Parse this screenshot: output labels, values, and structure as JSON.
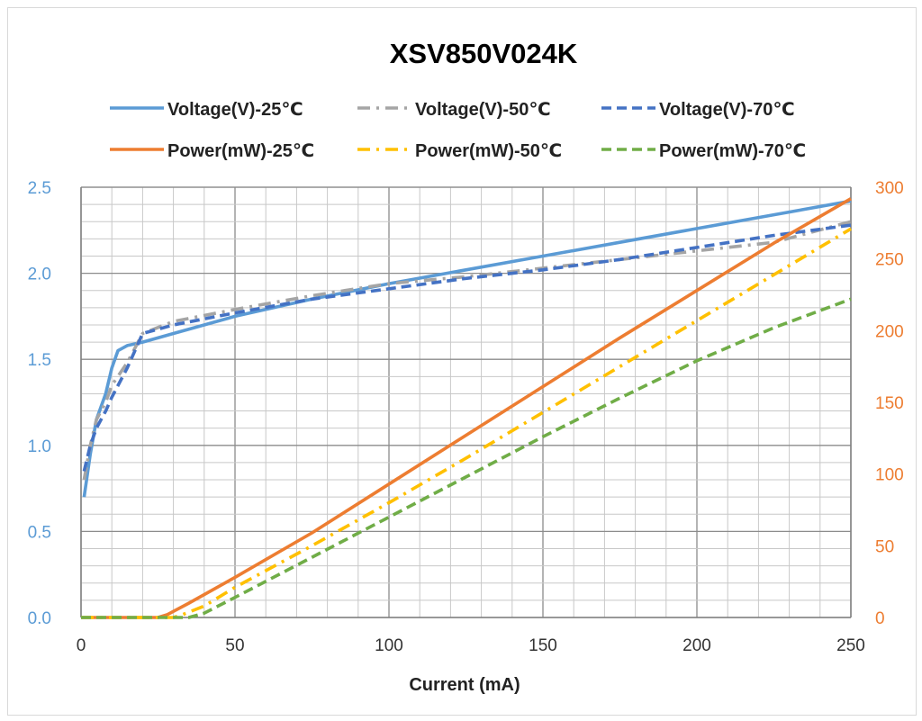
{
  "chart_data": {
    "type": "line",
    "title": "XSV850V024K",
    "xlabel": "Current (mA)",
    "xlim": [
      0,
      250
    ],
    "x_ticks": [
      "0",
      "50",
      "100",
      "150",
      "200",
      "250"
    ],
    "y_left": {
      "lim": [
        0,
        2.5
      ],
      "ticks": [
        "0.0",
        "0.5",
        "1.0",
        "1.5",
        "2.0",
        "2.5"
      ],
      "color": "#5b9bd5"
    },
    "y_right": {
      "lim": [
        0,
        300
      ],
      "ticks": [
        "0",
        "50",
        "100",
        "150",
        "200",
        "250",
        "300"
      ],
      "color": "#ed7d31"
    },
    "grid": true,
    "legend_position": "top",
    "series": [
      {
        "name": "Voltage(V)-25℃",
        "axis": "left",
        "color": "#5b9bd5",
        "dash": "solid",
        "points": [
          [
            1,
            0.7
          ],
          [
            3,
            0.95
          ],
          [
            5,
            1.15
          ],
          [
            8,
            1.3
          ],
          [
            10,
            1.45
          ],
          [
            12,
            1.55
          ],
          [
            15,
            1.58
          ],
          [
            20,
            1.6
          ],
          [
            30,
            1.65
          ],
          [
            50,
            1.75
          ],
          [
            75,
            1.85
          ],
          [
            100,
            1.94
          ],
          [
            125,
            2.02
          ],
          [
            150,
            2.1
          ],
          [
            175,
            2.18
          ],
          [
            200,
            2.26
          ],
          [
            225,
            2.34
          ],
          [
            250,
            2.42
          ]
        ]
      },
      {
        "name": "Voltage(V)-50℃",
        "axis": "left",
        "color": "#a5a5a5",
        "dash": "dashdot",
        "points": [
          [
            1,
            0.8
          ],
          [
            3,
            1.0
          ],
          [
            5,
            1.15
          ],
          [
            8,
            1.25
          ],
          [
            10,
            1.35
          ],
          [
            15,
            1.48
          ],
          [
            20,
            1.65
          ],
          [
            30,
            1.72
          ],
          [
            50,
            1.79
          ],
          [
            75,
            1.87
          ],
          [
            100,
            1.94
          ],
          [
            125,
            1.98
          ],
          [
            150,
            2.03
          ],
          [
            175,
            2.08
          ],
          [
            200,
            2.13
          ],
          [
            225,
            2.18
          ],
          [
            250,
            2.3
          ]
        ]
      },
      {
        "name": "Voltage(V)-70℃",
        "axis": "left",
        "color": "#4472c4",
        "dash": "dashed",
        "points": [
          [
            1,
            0.85
          ],
          [
            3,
            1.0
          ],
          [
            5,
            1.1
          ],
          [
            8,
            1.2
          ],
          [
            10,
            1.28
          ],
          [
            15,
            1.45
          ],
          [
            20,
            1.65
          ],
          [
            30,
            1.7
          ],
          [
            50,
            1.77
          ],
          [
            75,
            1.85
          ],
          [
            100,
            1.91
          ],
          [
            125,
            1.97
          ],
          [
            150,
            2.02
          ],
          [
            175,
            2.08
          ],
          [
            200,
            2.15
          ],
          [
            225,
            2.22
          ],
          [
            250,
            2.28
          ]
        ]
      },
      {
        "name": "Power(mW)-25℃",
        "axis": "right",
        "color": "#ed7d31",
        "dash": "solid",
        "points": [
          [
            0,
            0
          ],
          [
            25,
            0
          ],
          [
            28,
            2
          ],
          [
            35,
            10
          ],
          [
            50,
            28
          ],
          [
            75,
            59
          ],
          [
            100,
            93
          ],
          [
            125,
            127
          ],
          [
            150,
            161
          ],
          [
            175,
            195
          ],
          [
            200,
            228
          ],
          [
            225,
            261
          ],
          [
            250,
            292
          ]
        ]
      },
      {
        "name": "Power(mW)-50℃",
        "axis": "right",
        "color": "#ffc000",
        "dash": "dashdot",
        "points": [
          [
            0,
            0
          ],
          [
            30,
            0
          ],
          [
            33,
            2
          ],
          [
            40,
            8
          ],
          [
            50,
            21
          ],
          [
            75,
            50
          ],
          [
            100,
            80
          ],
          [
            125,
            111
          ],
          [
            150,
            143
          ],
          [
            175,
            175
          ],
          [
            200,
            207
          ],
          [
            225,
            239
          ],
          [
            250,
            271
          ]
        ]
      },
      {
        "name": "Power(mW)-70℃",
        "axis": "right",
        "color": "#70ad47",
        "dash": "dashed",
        "points": [
          [
            0,
            0
          ],
          [
            35,
            0
          ],
          [
            40,
            3
          ],
          [
            50,
            14
          ],
          [
            75,
            42
          ],
          [
            100,
            70
          ],
          [
            125,
            98
          ],
          [
            150,
            126
          ],
          [
            175,
            153
          ],
          [
            200,
            179
          ],
          [
            225,
            202
          ],
          [
            250,
            222
          ]
        ]
      }
    ]
  }
}
